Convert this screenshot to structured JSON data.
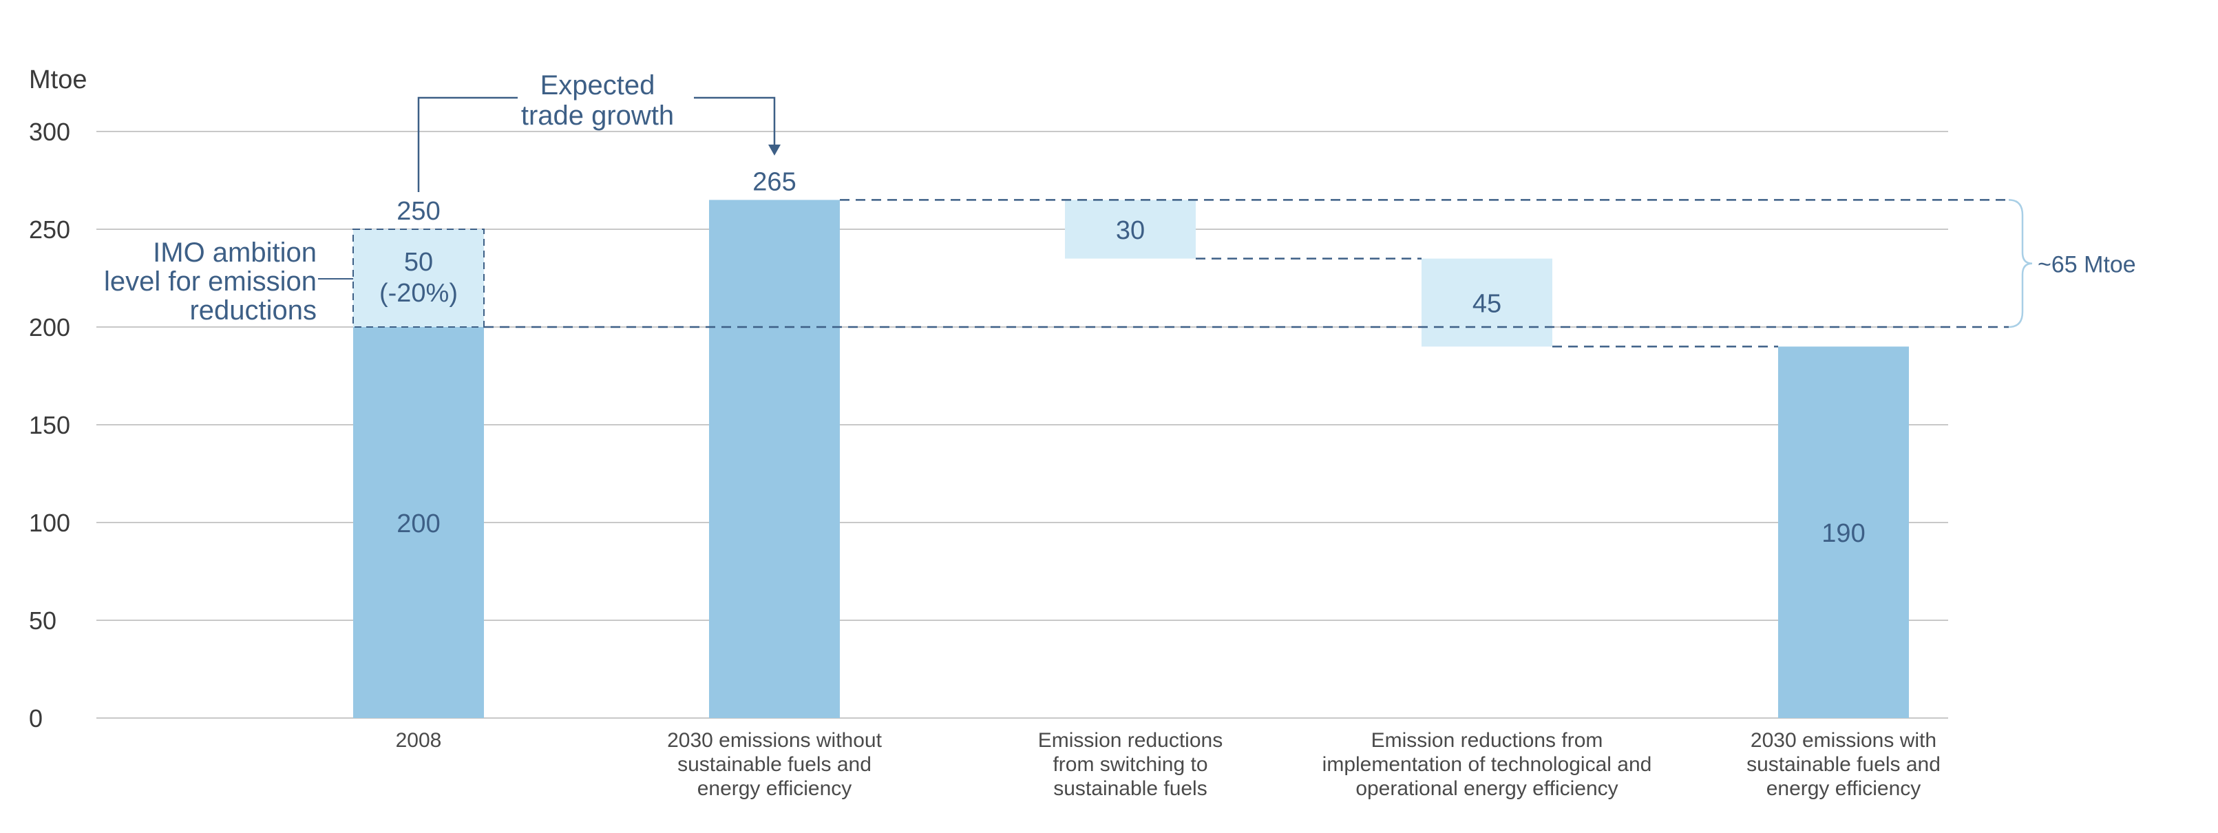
{
  "chart_data": {
    "type": "bar",
    "variant": "waterfall",
    "ylabel": "Mtoe",
    "ylim": [
      0,
      300
    ],
    "yticks": [
      0,
      50,
      100,
      150,
      200,
      250,
      300
    ],
    "grid": true,
    "categories": [
      [
        "2008"
      ],
      [
        "2030 emissions without",
        "sustainable fuels and",
        "energy efficiency"
      ],
      [
        "Emission reductions",
        "from switching to",
        "sustainable fuels"
      ],
      [
        "Emission reductions from",
        "implementation of technological and",
        "operational energy efficiency"
      ],
      [
        "2030 emissions with",
        "sustainable fuels and",
        "energy efficiency"
      ]
    ],
    "bars": [
      {
        "kind": "total",
        "base": 0,
        "top": 200,
        "label": "200"
      },
      {
        "kind": "total",
        "base": 0,
        "top": 265,
        "label": "265"
      },
      {
        "kind": "decrease",
        "base": 235,
        "top": 265,
        "label": "30"
      },
      {
        "kind": "decrease",
        "base": 190,
        "top": 235,
        "label": "45"
      },
      {
        "kind": "total",
        "base": 0,
        "top": 190,
        "label": "190"
      }
    ],
    "ambition_segment": {
      "category_index": 0,
      "base": 200,
      "top": 250,
      "total_label": "250",
      "label": [
        "50",
        "(-20%)"
      ]
    },
    "annotations": {
      "trade_growth": [
        "Expected",
        "trade growth"
      ],
      "imo_ambition": [
        "IMO ambition",
        "level for emission",
        "reductions"
      ],
      "bracket": "~65 Mtoe"
    },
    "colors": {
      "total_bar": "#97c7e4",
      "decrease_bar": "#d5ecf7",
      "text_accent": "#3d5f86",
      "dashed_line": "#3d5f86",
      "grid": "#c8c8c8",
      "bracket": "#a9cfe6"
    }
  }
}
